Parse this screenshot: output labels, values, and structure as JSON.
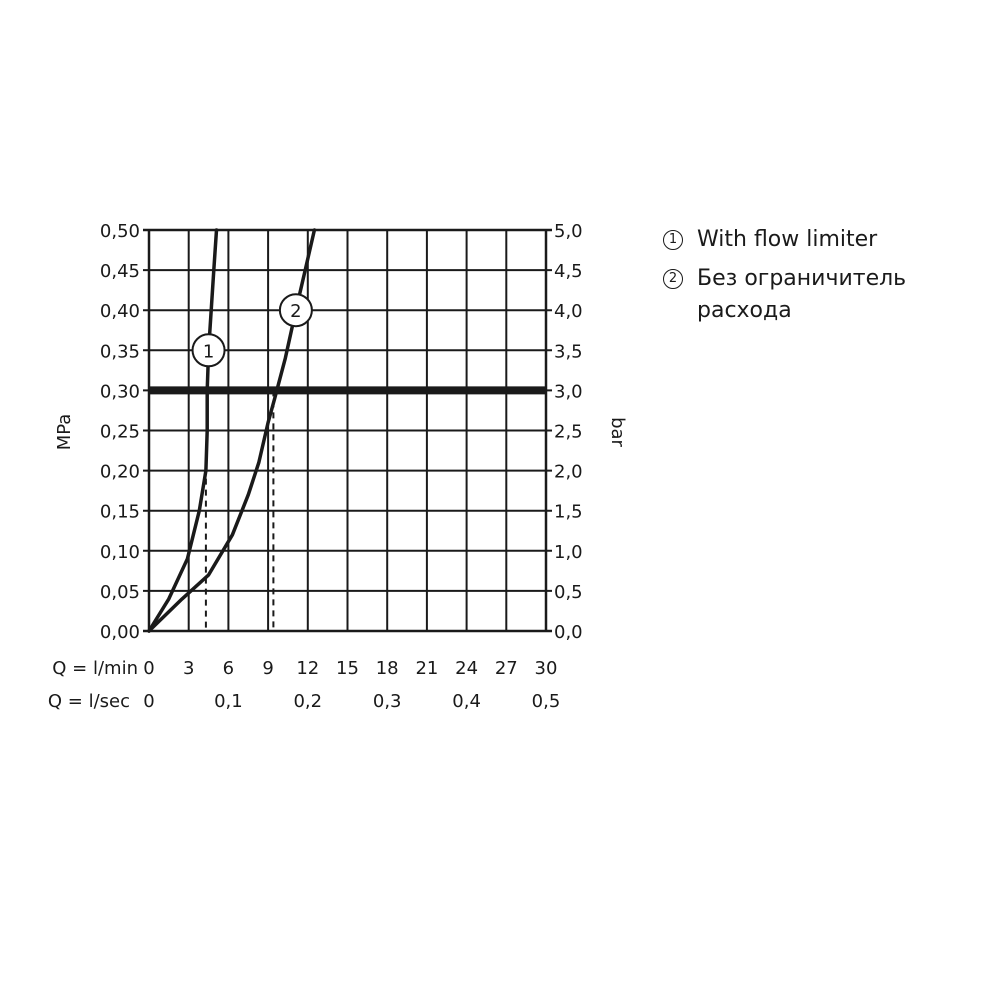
{
  "chart_data": {
    "type": "line",
    "ylabel": "MPa",
    "ylabel_right": "bar",
    "xlabel": "Q = l/min",
    "xlabel_secondary": "Q = l/sec",
    "x_ticks": [
      "0",
      "3",
      "6",
      "9",
      "12",
      "15",
      "18",
      "21",
      "24",
      "27",
      "30"
    ],
    "x_ticks_secondary": [
      "0",
      "0,1",
      "0,2",
      "0,3",
      "0,4",
      "0,5"
    ],
    "y_ticks": [
      "0,00",
      "0,05",
      "0,10",
      "0,15",
      "0,20",
      "0,25",
      "0,30",
      "0,35",
      "0,40",
      "0,45",
      "0,50"
    ],
    "y_ticks_right": [
      "0,0",
      "0,5",
      "1,0",
      "1,5",
      "2,0",
      "2,5",
      "3,0",
      "3,5",
      "4,0",
      "4,5",
      "5,0"
    ],
    "xlim": [
      0,
      30
    ],
    "ylim": [
      0,
      0.5
    ],
    "grid": true,
    "reference_line": {
      "y": 0.3
    },
    "series": [
      {
        "name": "1",
        "marker_label": "1",
        "points": [
          [
            0,
            0
          ],
          [
            1.5,
            0.04
          ],
          [
            2.9,
            0.09
          ],
          [
            3.8,
            0.15
          ],
          [
            4.3,
            0.2
          ],
          [
            4.4,
            0.25
          ],
          [
            4.4,
            0.3
          ],
          [
            4.5,
            0.35
          ],
          [
            4.7,
            0.4
          ],
          [
            4.9,
            0.45
          ],
          [
            5.1,
            0.5
          ]
        ],
        "drop_x": 4.3
      },
      {
        "name": "2",
        "marker_label": "2",
        "points": [
          [
            0,
            0
          ],
          [
            2.5,
            0.04
          ],
          [
            4.5,
            0.07
          ],
          [
            6.3,
            0.12
          ],
          [
            7.5,
            0.17
          ],
          [
            8.3,
            0.21
          ],
          [
            9.0,
            0.26
          ],
          [
            9.5,
            0.29
          ],
          [
            10.3,
            0.34
          ],
          [
            11.1,
            0.4
          ],
          [
            11.8,
            0.45
          ],
          [
            12.5,
            0.5
          ]
        ],
        "drop_x": 9.4
      }
    ],
    "legend_position": "right"
  },
  "legend": {
    "items": [
      {
        "marker": "1",
        "text": "With flow limiter"
      },
      {
        "marker": "2",
        "text": "Без ограничитель расхода"
      }
    ]
  }
}
